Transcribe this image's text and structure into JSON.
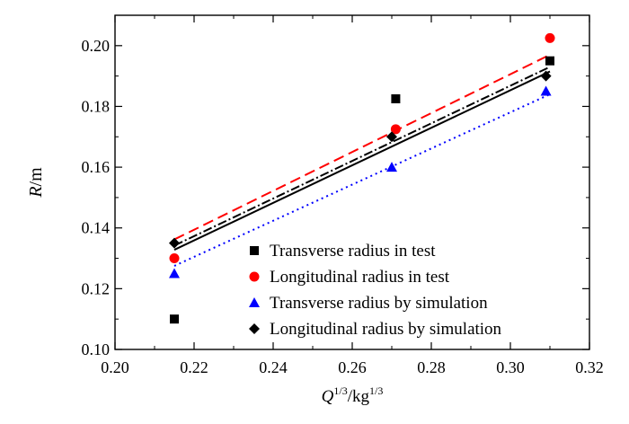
{
  "chart_data": {
    "type": "scatter",
    "xlabel": {
      "base": "Q",
      "sup": "1/3",
      "mid": "/kg",
      "sup2": "1/3"
    },
    "ylabel": {
      "base": "R",
      "rest": "/m"
    },
    "xlim": [
      0.2,
      0.32
    ],
    "ylim": [
      0.1,
      0.21
    ],
    "xticks": [
      "0.20",
      "0.22",
      "0.24",
      "0.26",
      "0.28",
      "0.30",
      "0.32"
    ],
    "yticks": [
      "0.10",
      "0.12",
      "0.14",
      "0.16",
      "0.18",
      "0.20"
    ],
    "grid": false,
    "legend_position": "bottom-right",
    "series": [
      {
        "name": "Transverse radius in test",
        "marker": "square",
        "color": "#000000",
        "points": [
          [
            0.215,
            0.11
          ],
          [
            0.271,
            0.1825
          ],
          [
            0.31,
            0.195
          ]
        ],
        "fit": {
          "x": [
            0.215,
            0.31
          ],
          "y": [
            0.1328,
            0.1915
          ],
          "style": "solid",
          "color": "#000000"
        }
      },
      {
        "name": "Longitudinal radius in test",
        "marker": "circle",
        "color": "#ff0000",
        "points": [
          [
            0.215,
            0.13
          ],
          [
            0.271,
            0.1725
          ],
          [
            0.31,
            0.2025
          ]
        ],
        "fit": {
          "x": [
            0.215,
            0.31
          ],
          "y": [
            0.1362,
            0.197
          ],
          "style": "dashed",
          "color": "#ff0000"
        }
      },
      {
        "name": "Transverse radius by simulation",
        "marker": "triangle",
        "color": "#0000ff",
        "points": [
          [
            0.215,
            0.125
          ],
          [
            0.27,
            0.16
          ],
          [
            0.309,
            0.185
          ]
        ],
        "fit": {
          "x": [
            0.215,
            0.31
          ],
          "y": [
            0.1275,
            0.184
          ],
          "style": "dotted",
          "color": "#0000ff"
        }
      },
      {
        "name": "Longitudinal radius by simulation",
        "marker": "diamond",
        "color": "#000000",
        "points": [
          [
            0.215,
            0.135
          ],
          [
            0.27,
            0.17
          ],
          [
            0.309,
            0.19
          ]
        ],
        "fit": {
          "x": [
            0.215,
            0.31
          ],
          "y": [
            0.1342,
            0.193
          ],
          "style": "dashdot",
          "color": "#000000"
        }
      }
    ]
  }
}
